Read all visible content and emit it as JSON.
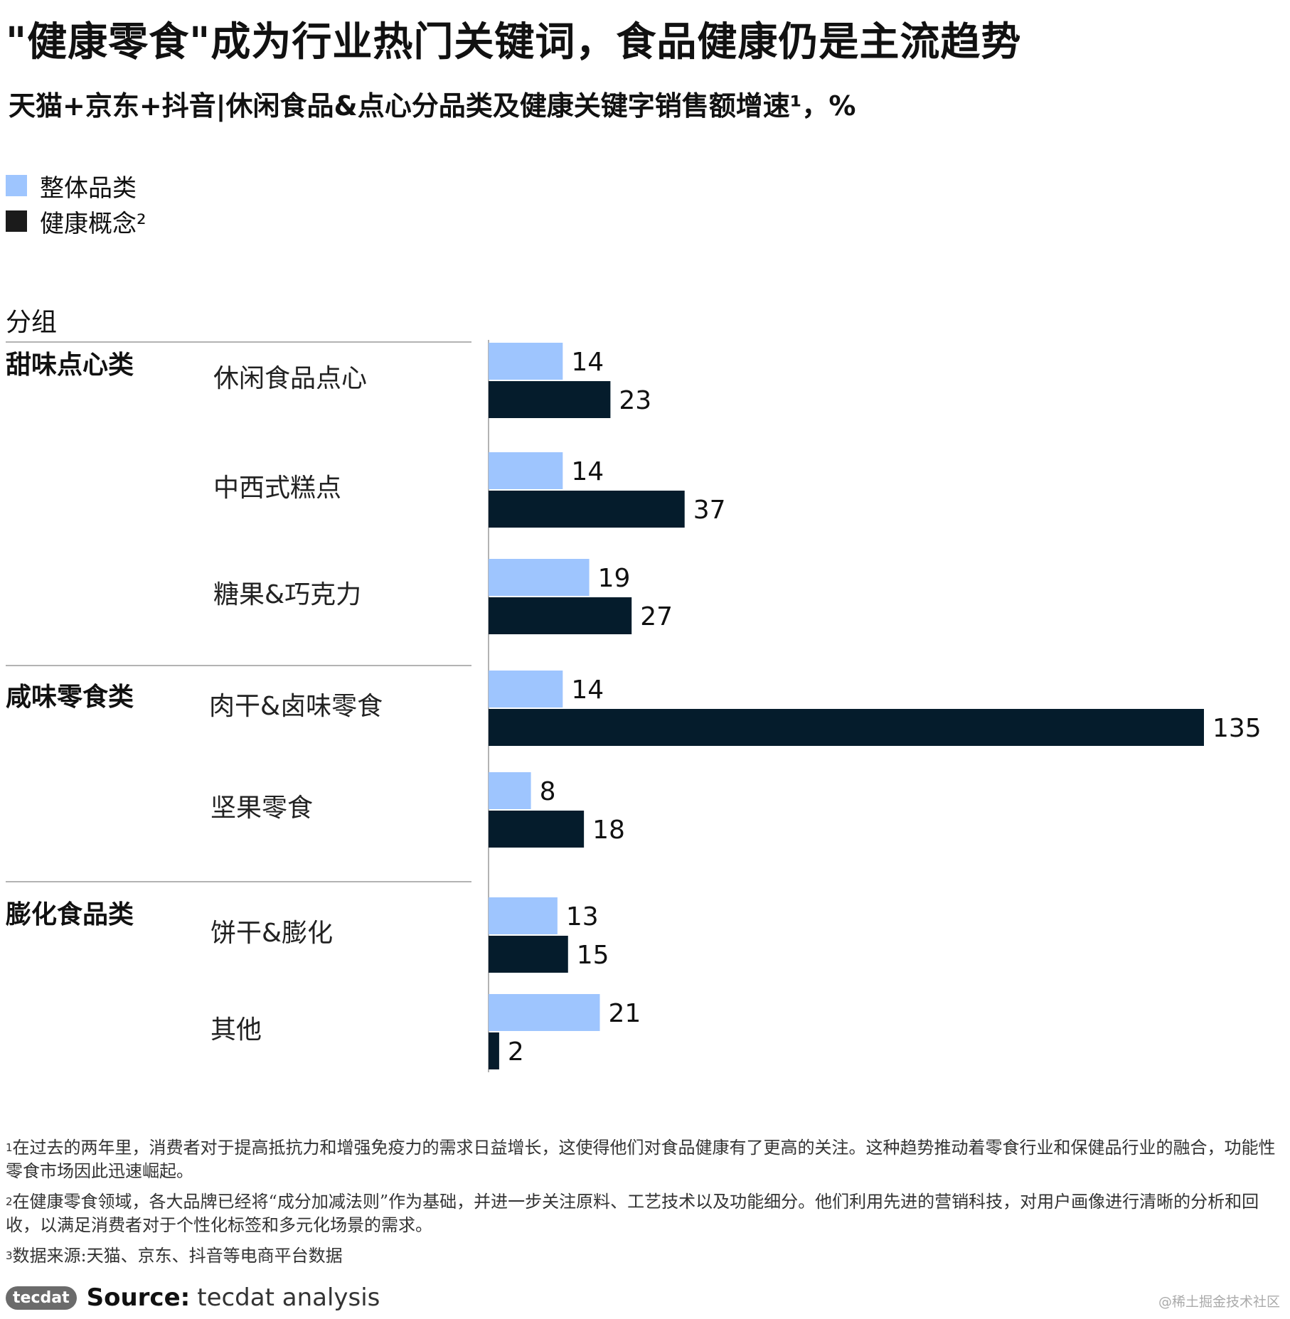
{
  "title": "\"健康零食\"成为行业热门关键词，食品健康仍是主流趋势",
  "subtitle": "天猫+京东+抖音|休闲食品&点心分品类及健康关键字销售额增速¹，%",
  "legend": [
    {
      "label": "整体品类",
      "color": "#9ec5fe"
    },
    {
      "label": "健康概念²",
      "color": "#051c2c"
    }
  ],
  "group_header": "分组",
  "chart_data": {
    "type": "bar",
    "orientation": "horizontal",
    "groups": [
      {
        "name": "甜味点心类",
        "categories": [
          "休闲食品点心",
          "中西式糕点",
          "糖果&巧克力"
        ]
      },
      {
        "name": "咸味零食类",
        "categories": [
          "肉干&卤味零食",
          "坚果零食"
        ]
      },
      {
        "name": "膨化食品类",
        "categories": [
          "饼干&膨化",
          "其他"
        ]
      }
    ],
    "categories": [
      "休闲食品点心",
      "中西式糕点",
      "糖果&巧克力",
      "肉干&卤味零食",
      "坚果零食",
      "饼干&膨化",
      "其他"
    ],
    "series": [
      {
        "name": "整体品类",
        "values": [
          14,
          14,
          19,
          14,
          8,
          13,
          21
        ],
        "color": "#9ec5fe"
      },
      {
        "name": "健康概念²",
        "values": [
          23,
          37,
          27,
          135,
          18,
          15,
          2
        ],
        "color": "#051c2c"
      }
    ],
    "xlim": [
      0,
      135
    ],
    "data_labels": true,
    "grid": false,
    "legend_position": "top-left"
  },
  "footnotes": [
    {
      "mark": "1",
      "text": "在过去的两年里，消费者对于提高抵抗力和增强免疫力的需求日益增长，这使得他们对食品健康有了更高的关注。这种趋势推动着零食行业和保健品行业的融合，功能性零食市场因此迅速崛起。"
    },
    {
      "mark": "2",
      "text": "在健康零食领域，各大品牌已经将“成分加减法则”作为基础，并进一步关注原料、工艺技术以及功能细分。他们利用先进的营销科技，对用户画像进行清晰的分析和回收，以满足消费者对于个性化标签和多元化场景的需求。"
    },
    {
      "mark": "3",
      "text": "数据来源:天猫、京东、抖音等电商平台数据"
    }
  ],
  "source": {
    "logo": "tecdat",
    "label": "Source:",
    "text": "tecdat analysis"
  },
  "watermark": "@稀土掘金技术社区"
}
